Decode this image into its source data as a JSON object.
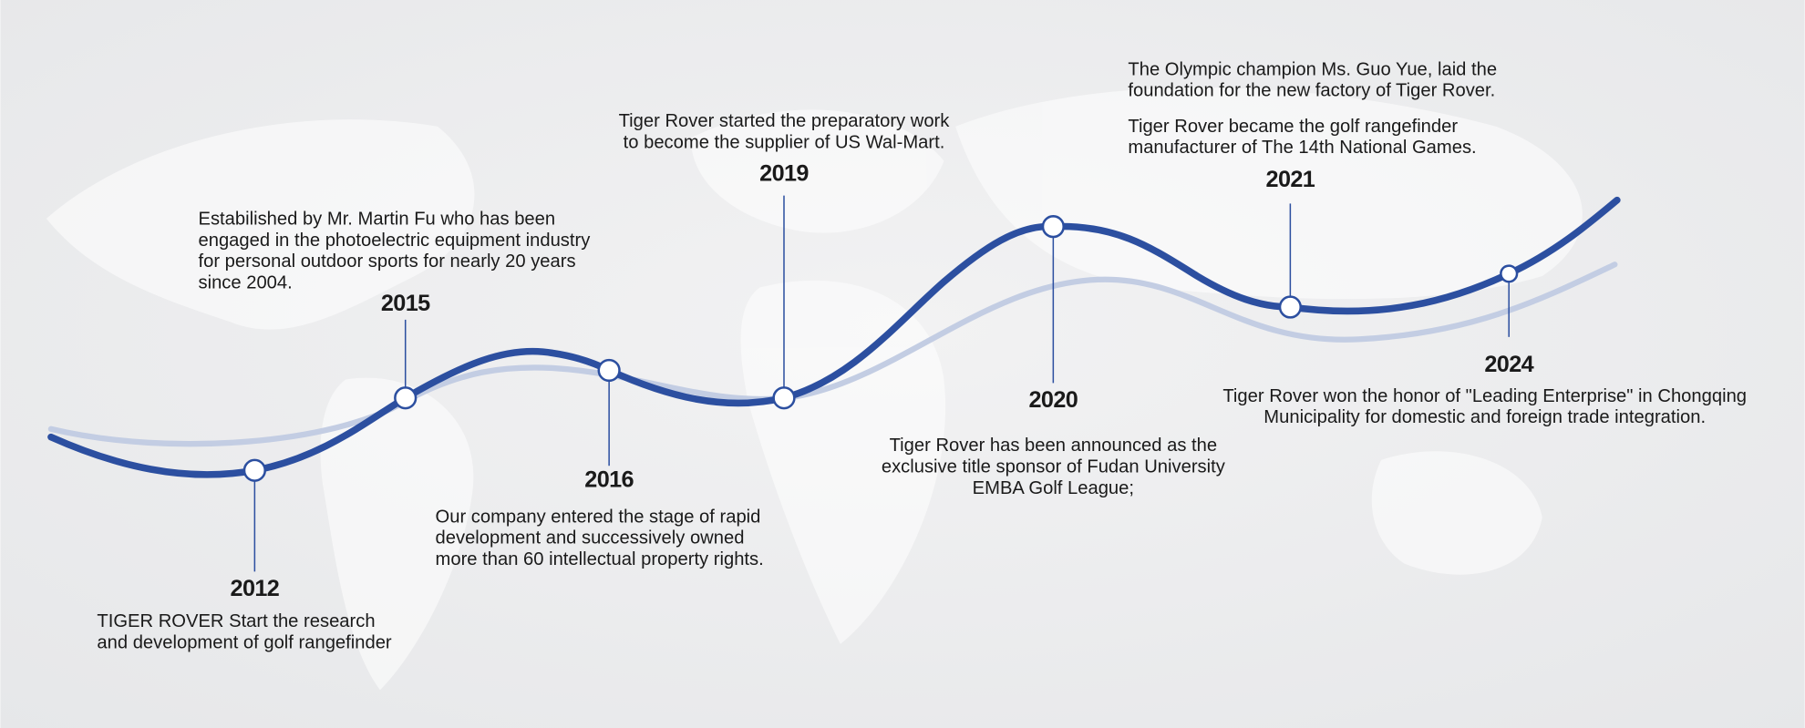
{
  "milestones": [
    {
      "year": "2012",
      "paragraphs": [
        [
          "TIGER ROVER Start the research",
          "and development of golf rangefinder"
        ]
      ]
    },
    {
      "year": "2015",
      "paragraphs": [
        [
          "Estabilished by Mr. Martin Fu who has been",
          "engaged in the photoelectric equipment industry",
          "for personal outdoor sports for nearly 20 years",
          "since 2004."
        ]
      ]
    },
    {
      "year": "2016",
      "paragraphs": [
        [
          "Our company entered the stage of rapid",
          "development and successively owned",
          "more than 60 intellectual property rights."
        ]
      ]
    },
    {
      "year": "2019",
      "paragraphs": [
        [
          "Tiger Rover started the preparatory work",
          "to become the supplier of US Wal-Mart."
        ]
      ]
    },
    {
      "year": "2020",
      "paragraphs": [
        [
          "Tiger Rover has been announced as the",
          "exclusive title sponsor of Fudan University",
          "EMBA Golf League;"
        ]
      ]
    },
    {
      "year": "2021",
      "paragraphs": [
        [
          "The Olympic champion Ms. Guo Yue, laid the",
          "foundation for the new factory of Tiger Rover."
        ],
        [
          "Tiger Rover became the golf rangefinder",
          "manufacturer of The 14th National Games."
        ]
      ]
    },
    {
      "year": "2024",
      "paragraphs": [
        [
          "Tiger Rover won the honor of \"Leading Enterprise\" in Chongqing",
          "Municipality for domestic and foreign trade integration."
        ]
      ]
    }
  ]
}
